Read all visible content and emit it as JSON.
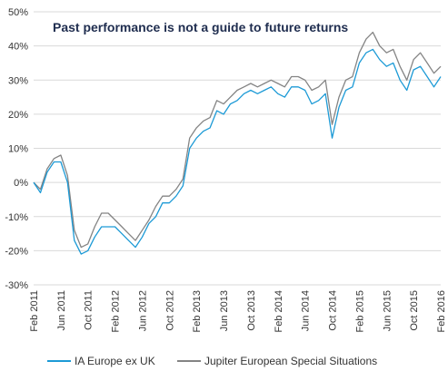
{
  "chart_data": {
    "type": "line",
    "title": "Past performance is not a guide to future returns",
    "xlabel": "",
    "ylabel": "",
    "ylim": [
      -30,
      50
    ],
    "y_ticks": [
      -30,
      -20,
      -10,
      0,
      10,
      20,
      30,
      40,
      50
    ],
    "y_tick_labels": [
      "-30%",
      "-20%",
      "-10%",
      "0%",
      "10%",
      "20%",
      "30%",
      "40%",
      "50%"
    ],
    "x_tick_labels": [
      "Feb 2011",
      "Jun 2011",
      "Oct 2011",
      "Feb 2012",
      "Jun 2012",
      "Oct 2012",
      "Feb 2013",
      "Jun 2013",
      "Oct 2013",
      "Feb 2014",
      "Jun 2014",
      "Oct 2014",
      "Feb 2015",
      "Jun 2015",
      "Oct 2015",
      "Feb 2016"
    ],
    "grid": "horizontal",
    "legend_position": "bottom",
    "x": [
      "2011-02",
      "2011-03",
      "2011-04",
      "2011-05",
      "2011-06",
      "2011-07",
      "2011-08",
      "2011-09",
      "2011-10",
      "2011-11",
      "2011-12",
      "2012-01",
      "2012-02",
      "2012-03",
      "2012-04",
      "2012-05",
      "2012-06",
      "2012-07",
      "2012-08",
      "2012-09",
      "2012-10",
      "2012-11",
      "2012-12",
      "2013-01",
      "2013-02",
      "2013-03",
      "2013-04",
      "2013-05",
      "2013-06",
      "2013-07",
      "2013-08",
      "2013-09",
      "2013-10",
      "2013-11",
      "2013-12",
      "2014-01",
      "2014-02",
      "2014-03",
      "2014-04",
      "2014-05",
      "2014-06",
      "2014-07",
      "2014-08",
      "2014-09",
      "2014-10",
      "2014-11",
      "2014-12",
      "2015-01",
      "2015-02",
      "2015-03",
      "2015-04",
      "2015-05",
      "2015-06",
      "2015-07",
      "2015-08",
      "2015-09",
      "2015-10",
      "2015-11",
      "2015-12",
      "2016-01",
      "2016-02"
    ],
    "series": [
      {
        "name": "IA Europe ex UK",
        "color": "#1c9ad6",
        "values": [
          0,
          -3,
          3,
          6,
          6,
          0,
          -17,
          -21,
          -20,
          -16,
          -13,
          -13,
          -13,
          -15,
          -17,
          -19,
          -16,
          -12,
          -10,
          -6,
          -6,
          -4,
          -1,
          10,
          13,
          15,
          16,
          21,
          20,
          23,
          24,
          26,
          27,
          26,
          27,
          28,
          26,
          25,
          28,
          28,
          27,
          23,
          24,
          26,
          13,
          22,
          27,
          28,
          35,
          38,
          39,
          36,
          34,
          35,
          30,
          27,
          33,
          34,
          31,
          28,
          31
        ]
      },
      {
        "name": "Jupiter European Special Situations",
        "color": "#848484",
        "values": [
          0,
          -2,
          4,
          7,
          8,
          2,
          -14,
          -19,
          -18,
          -13,
          -9,
          -9,
          -11,
          -13,
          -15,
          -17,
          -14,
          -11,
          -7,
          -4,
          -4,
          -2,
          1,
          13,
          16,
          18,
          19,
          24,
          23,
          25,
          27,
          28,
          29,
          28,
          29,
          30,
          29,
          28,
          31,
          31,
          30,
          27,
          28,
          30,
          17,
          25,
          30,
          31,
          38,
          42,
          44,
          40,
          38,
          39,
          34,
          30,
          36,
          38,
          35,
          32,
          34
        ]
      }
    ]
  }
}
